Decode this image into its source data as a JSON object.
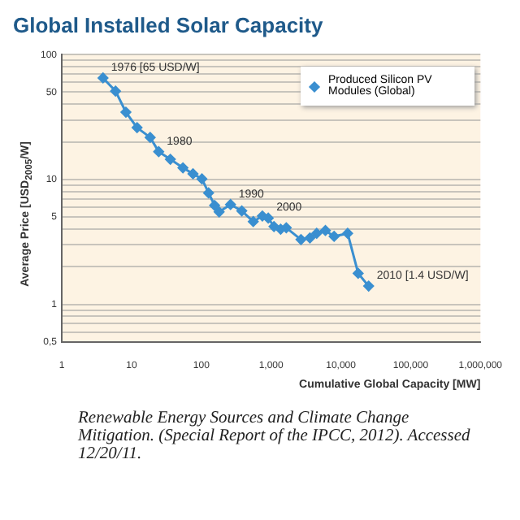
{
  "chart_data": {
    "type": "line",
    "title": "Global Installed Solar Capacity",
    "xlabel": "Cumulative Global Capacity [MW]",
    "ylabel": "Average Price [USD$_{2005}$/W]",
    "x": [
      3.9,
      5.9,
      8.3,
      12,
      18.5,
      24.5,
      36,
      54.5,
      76,
      102,
      127,
      155,
      180,
      262,
      380,
      555,
      750,
      910,
      1100,
      1370,
      1650,
      2680,
      3600,
      4500,
      6000,
      8000,
      12500,
      17700,
      25000
    ],
    "series": [
      {
        "name": "Produced Silicon PV Modules (Global)",
        "color": "#3a8fd0",
        "values": [
          65,
          51,
          34.6,
          26,
          21.7,
          16.7,
          14.5,
          12.4,
          11.1,
          10.1,
          7.8,
          6.2,
          5.5,
          6.3,
          5.6,
          4.6,
          5.1,
          4.9,
          4.2,
          4.0,
          4.1,
          3.3,
          3.4,
          3.7,
          3.9,
          3.5,
          3.7,
          1.77,
          1.4
        ]
      }
    ],
    "log": "xy",
    "xlim": [
      1,
      1000000
    ],
    "ylim": [
      0.5,
      100
    ],
    "xticks": [
      1,
      10,
      100,
      {
        "value": 1000,
        "label": "1,000"
      },
      {
        "value": 10000,
        "label": "10,000"
      },
      {
        "value": 100000,
        "label": "100,000"
      },
      {
        "value": 1000000,
        "label": "1,000,000"
      }
    ],
    "yticks": [
      {
        "value": 0.5,
        "label": "0,5"
      },
      {
        "value": 0.6,
        "label": null
      },
      {
        "value": 0.7,
        "label": null
      },
      {
        "value": 0.8,
        "label": null
      },
      {
        "value": 0.9,
        "label": null
      },
      1,
      {
        "value": 2,
        "label": null
      },
      {
        "value": 3,
        "label": null
      },
      {
        "value": 4,
        "label": null
      },
      5,
      {
        "value": 6,
        "label": null
      },
      {
        "value": 7,
        "label": null
      },
      {
        "value": 8,
        "label": null
      },
      {
        "value": 9,
        "label": null
      },
      10,
      {
        "value": 20,
        "label": null
      },
      {
        "value": 30,
        "label": null
      },
      {
        "value": 40,
        "label": null
      },
      50,
      {
        "value": 60,
        "label": null
      },
      {
        "value": 70,
        "label": null
      },
      {
        "value": 80,
        "label": null
      },
      {
        "value": 90,
        "label": null
      },
      100
    ],
    "grid": "y",
    "legend": "top right",
    "marker": "diamond",
    "line_style": "solid",
    "annotations": [
      {
        "text": "1976 [65 USD/W]",
        "x": 3.9,
        "y": 65
      },
      {
        "text": "1980",
        "x": 24.5,
        "y": 16.7
      },
      {
        "text": "1990",
        "x": 262,
        "y": 6.3
      },
      {
        "text": "2000",
        "x": 910,
        "y": 4.9
      },
      {
        "text": "2010 [1.4 USD/W]",
        "x": 25000,
        "y": 1.4
      },
      "Renewable Energy Sources and Climate Change Mitigation. (Special Report of the IPCC, 2012). Accessed 12/20/11."
    ]
  }
}
